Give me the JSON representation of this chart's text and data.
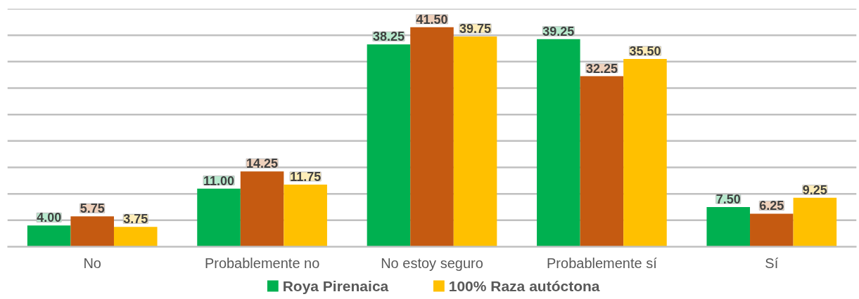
{
  "chart_data": {
    "type": "bar",
    "categories": [
      "No",
      "Probablemente no",
      "No estoy seguro",
      "Probablemente sí",
      "Sí"
    ],
    "series": [
      {
        "name": "Roya Pirenaica",
        "color": "#00b050",
        "values": [
          4.0,
          11.0,
          38.25,
          39.25,
          7.5
        ],
        "value_labels": [
          "4.00",
          "11.00",
          "38.25",
          "39.25",
          "7.50"
        ]
      },
      {
        "color": "#c55a11",
        "values": [
          5.75,
          14.25,
          41.5,
          32.25,
          6.25
        ],
        "value_labels": [
          "5.75",
          "14.25",
          "41.50",
          "32.25",
          "6.25"
        ]
      },
      {
        "name": "100% Raza autóctona",
        "color": "#ffc000",
        "values": [
          3.75,
          11.75,
          39.75,
          35.5,
          9.25
        ],
        "value_labels": [
          "3.75",
          "11.75",
          "39.75",
          "35.50",
          "9.25"
        ]
      }
    ],
    "ylim": [
      0,
      45
    ],
    "yticks": [
      {
        "value": 5,
        "label": null
      },
      {
        "value": 10,
        "label": null
      },
      {
        "value": 15,
        "label": null
      },
      {
        "value": 20,
        "label": null
      },
      {
        "value": 25,
        "label": null
      },
      {
        "value": 30,
        "label": null
      },
      {
        "value": 35,
        "label": null
      },
      {
        "value": 40,
        "label": null
      },
      {
        "value": 45,
        "label": null
      }
    ],
    "grid": "y",
    "legend": "bottom",
    "tick_labels": "x"
  }
}
